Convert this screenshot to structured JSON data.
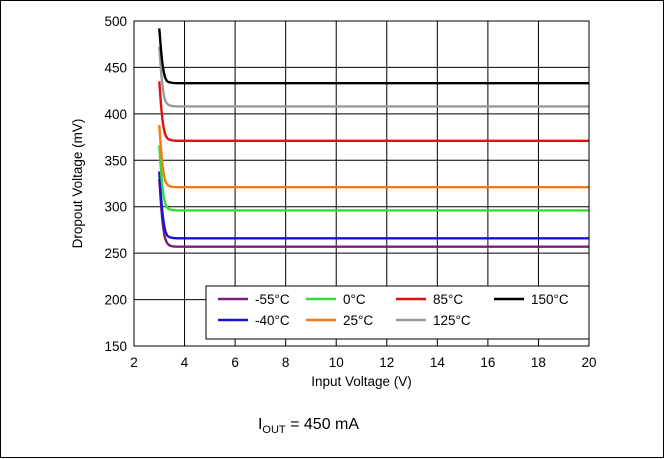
{
  "chart_data": {
    "type": "line",
    "title": "",
    "xlabel": "Input Voltage (V)",
    "ylabel": "Dropout Voltage (mV)",
    "xlim": [
      2,
      20
    ],
    "ylim": [
      150,
      500
    ],
    "xticks": [
      2,
      4,
      6,
      8,
      10,
      12,
      14,
      16,
      18,
      20
    ],
    "yticks": [
      150,
      200,
      250,
      300,
      350,
      400,
      450,
      500
    ],
    "grid": true,
    "legend_position": "bottom-right",
    "series": [
      {
        "name": "-55°C",
        "color": "#7b1f7b",
        "x": [
          3.0,
          3.1,
          3.2,
          3.3,
          3.4,
          3.6,
          4,
          6,
          10,
          20
        ],
        "y": [
          330,
          290,
          268,
          261,
          258,
          257,
          257,
          257,
          257,
          257
        ]
      },
      {
        "name": "-40°C",
        "color": "#1414d2",
        "x": [
          3.0,
          3.1,
          3.2,
          3.3,
          3.4,
          3.6,
          4,
          6,
          10,
          20
        ],
        "y": [
          338,
          298,
          277,
          269,
          267,
          266,
          266,
          266,
          266,
          266
        ]
      },
      {
        "name": "0°C",
        "color": "#33dd33",
        "x": [
          3.0,
          3.1,
          3.2,
          3.3,
          3.4,
          3.6,
          4,
          6,
          10,
          20
        ],
        "y": [
          366,
          326,
          306,
          299,
          297,
          296,
          296,
          296,
          296,
          296
        ]
      },
      {
        "name": "25°C",
        "color": "#f57a14",
        "x": [
          3.0,
          3.1,
          3.2,
          3.3,
          3.4,
          3.6,
          4,
          6,
          10,
          20
        ],
        "y": [
          388,
          350,
          330,
          324,
          322,
          321,
          321,
          321,
          321,
          321
        ]
      },
      {
        "name": "85°C",
        "color": "#e01010",
        "x": [
          3.0,
          3.1,
          3.2,
          3.3,
          3.4,
          3.6,
          4,
          6,
          10,
          20
        ],
        "y": [
          435,
          398,
          380,
          374,
          372,
          371,
          371,
          371,
          371,
          371
        ]
      },
      {
        "name": "125°C",
        "color": "#999999",
        "x": [
          3.0,
          3.1,
          3.2,
          3.3,
          3.4,
          3.6,
          4,
          6,
          10,
          20
        ],
        "y": [
          472,
          435,
          416,
          411,
          409,
          408,
          408,
          408,
          408,
          408
        ]
      },
      {
        "name": "150°C",
        "color": "#000000",
        "x": [
          3.0,
          3.1,
          3.2,
          3.3,
          3.4,
          3.6,
          4,
          6,
          10,
          20
        ],
        "y": [
          492,
          458,
          441,
          435,
          434,
          433,
          433,
          433,
          433,
          433
        ]
      }
    ],
    "legend_order": [
      "-55°C",
      "0°C",
      "85°C",
      "150°C",
      "-40°C",
      "25°C",
      "125°C"
    ]
  },
  "caption": {
    "prefix": "I",
    "subscript": "OUT",
    "suffix": " = 450 mA"
  }
}
